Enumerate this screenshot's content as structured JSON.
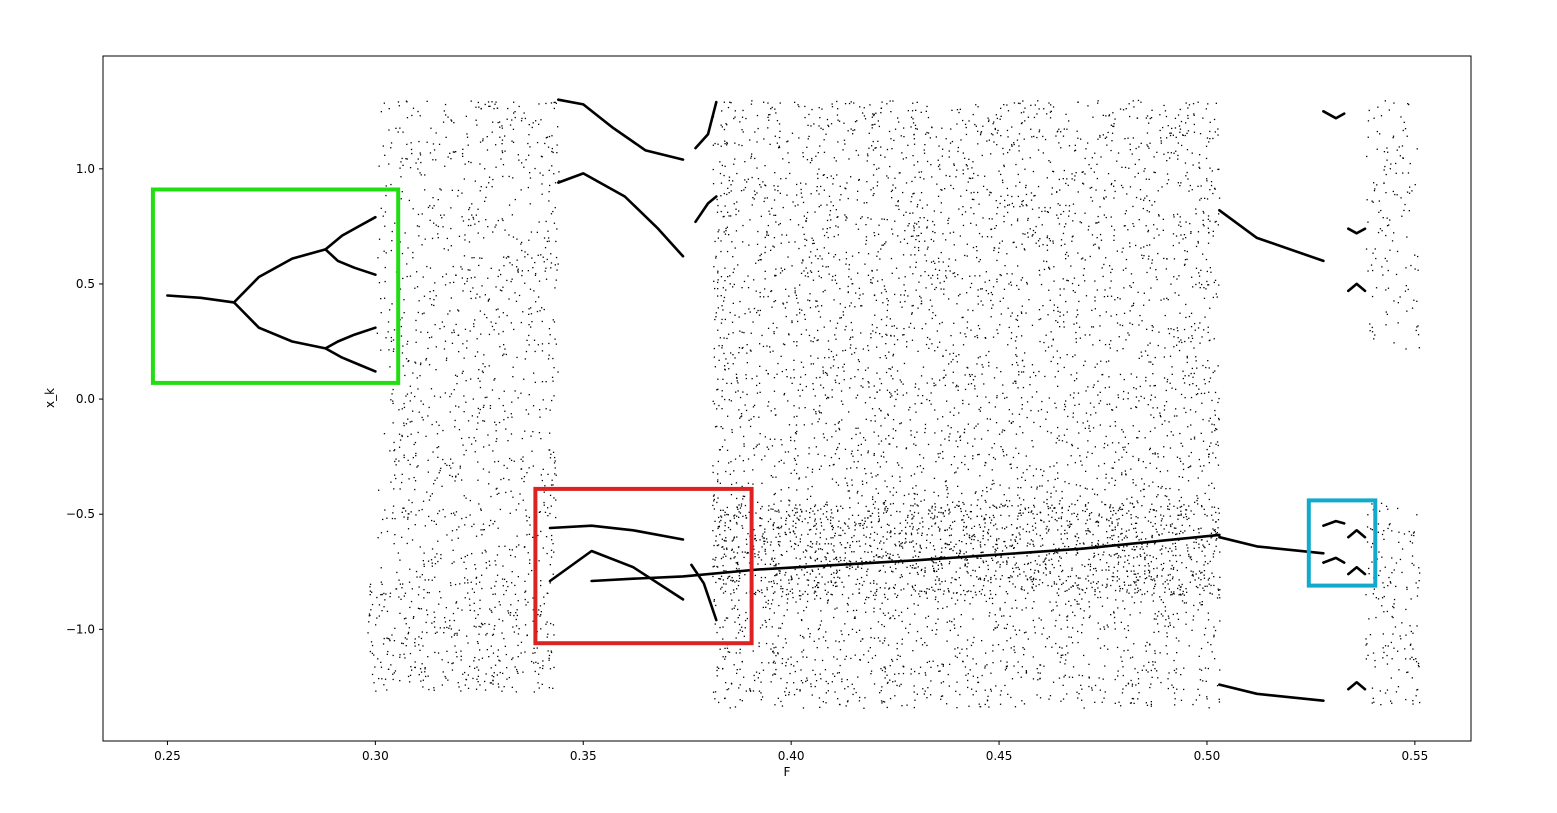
{
  "chart_data": {
    "type": "scatter",
    "xlabel": "F",
    "ylabel": "x_k",
    "xlim": [
      0.2345,
      0.5635
    ],
    "ylim": [
      -1.485,
      1.49
    ],
    "grid": false,
    "marker_color": "#000000",
    "xticks": [
      {
        "value": 0.25,
        "label": "0.25"
      },
      {
        "value": 0.3,
        "label": "0.30"
      },
      {
        "value": 0.35,
        "label": "0.35"
      },
      {
        "value": 0.4,
        "label": "0.40"
      },
      {
        "value": 0.45,
        "label": "0.45"
      },
      {
        "value": 0.5,
        "label": "0.50"
      },
      {
        "value": 0.55,
        "label": "0.55"
      }
    ],
    "yticks": [
      {
        "value": 1.0,
        "label": "1.0"
      },
      {
        "value": 0.5,
        "label": "0.5"
      },
      {
        "value": 0.0,
        "label": "0.0"
      },
      {
        "value": -0.5,
        "label": "−0.5"
      },
      {
        "value": -1.0,
        "label": "−1.0"
      }
    ],
    "series": [
      {
        "description": "bifurcation branches",
        "curves": [
          [
            [
              0.25,
              0.45
            ],
            [
              0.258,
              0.44
            ],
            [
              0.266,
              0.42
            ]
          ],
          [
            [
              0.266,
              0.42
            ],
            [
              0.272,
              0.53
            ],
            [
              0.28,
              0.61
            ],
            [
              0.288,
              0.65
            ]
          ],
          [
            [
              0.266,
              0.42
            ],
            [
              0.272,
              0.31
            ],
            [
              0.28,
              0.25
            ],
            [
              0.288,
              0.22
            ]
          ],
          [
            [
              0.288,
              0.65
            ],
            [
              0.292,
              0.71
            ],
            [
              0.296,
              0.75
            ],
            [
              0.3,
              0.79
            ]
          ],
          [
            [
              0.288,
              0.65
            ],
            [
              0.291,
              0.6
            ],
            [
              0.295,
              0.57
            ],
            [
              0.3,
              0.54
            ]
          ],
          [
            [
              0.288,
              0.22
            ],
            [
              0.291,
              0.25
            ],
            [
              0.295,
              0.28
            ],
            [
              0.3,
              0.31
            ]
          ],
          [
            [
              0.288,
              0.22
            ],
            [
              0.292,
              0.18
            ],
            [
              0.296,
              0.15
            ],
            [
              0.3,
              0.12
            ]
          ],
          [
            [
              0.344,
              1.3
            ],
            [
              0.35,
              1.28
            ],
            [
              0.357,
              1.18
            ],
            [
              0.365,
              1.08
            ],
            [
              0.374,
              1.04
            ]
          ],
          [
            [
              0.344,
              0.94
            ],
            [
              0.35,
              0.98
            ],
            [
              0.36,
              0.88
            ],
            [
              0.368,
              0.74
            ],
            [
              0.374,
              0.62
            ]
          ],
          [
            [
              0.377,
              1.09
            ],
            [
              0.38,
              1.15
            ],
            [
              0.382,
              1.29
            ]
          ],
          [
            [
              0.377,
              0.77
            ],
            [
              0.38,
              0.85
            ],
            [
              0.382,
              0.88
            ]
          ],
          [
            [
              0.342,
              -0.56
            ],
            [
              0.352,
              -0.55
            ],
            [
              0.362,
              -0.57
            ],
            [
              0.374,
              -0.61
            ]
          ],
          [
            [
              0.342,
              -0.79
            ],
            [
              0.352,
              -0.66
            ],
            [
              0.362,
              -0.73
            ],
            [
              0.374,
              -0.87
            ]
          ],
          [
            [
              0.352,
              -0.79
            ],
            [
              0.362,
              -0.78
            ],
            [
              0.374,
              -0.77
            ],
            [
              0.392,
              -0.74
            ],
            [
              0.43,
              -0.7
            ],
            [
              0.47,
              -0.65
            ],
            [
              0.503,
              -0.59
            ]
          ],
          [
            [
              0.376,
              -0.72
            ],
            [
              0.379,
              -0.8
            ],
            [
              0.382,
              -0.96
            ]
          ],
          [
            [
              0.503,
              0.82
            ],
            [
              0.512,
              0.7
            ],
            [
              0.528,
              0.6
            ]
          ],
          [
            [
              0.503,
              -0.6
            ],
            [
              0.512,
              -0.64
            ],
            [
              0.528,
              -0.67
            ]
          ],
          [
            [
              0.503,
              -1.24
            ],
            [
              0.512,
              -1.28
            ],
            [
              0.528,
              -1.31
            ]
          ],
          [
            [
              0.528,
              1.25
            ],
            [
              0.531,
              1.22
            ],
            [
              0.533,
              1.24
            ]
          ],
          [
            [
              0.534,
              0.47
            ],
            [
              0.536,
              0.5
            ],
            [
              0.538,
              0.47
            ]
          ],
          [
            [
              0.534,
              0.74
            ],
            [
              0.536,
              0.72
            ],
            [
              0.538,
              0.74
            ]
          ],
          [
            [
              0.534,
              -0.6
            ],
            [
              0.536,
              -0.57
            ],
            [
              0.538,
              -0.6
            ]
          ],
          [
            [
              0.534,
              -0.76
            ],
            [
              0.536,
              -0.73
            ],
            [
              0.538,
              -0.76
            ]
          ],
          [
            [
              0.534,
              -1.26
            ],
            [
              0.536,
              -1.23
            ],
            [
              0.538,
              -1.26
            ]
          ],
          [
            [
              0.528,
              -0.55
            ],
            [
              0.531,
              -0.53
            ],
            [
              0.533,
              -0.54
            ]
          ],
          [
            [
              0.528,
              -0.71
            ],
            [
              0.531,
              -0.69
            ],
            [
              0.533,
              -0.71
            ]
          ]
        ]
      },
      {
        "description": "chaotic regions",
        "bands": [
          {
            "x": [
              0.3,
              0.303
            ],
            "y": [
              -0.85,
              1.3
            ],
            "density": 0.4
          },
          {
            "x": [
              0.298,
              0.343
            ],
            "y": [
              -1.27,
              -0.78
            ],
            "density": 1.4
          },
          {
            "x": [
              0.303,
              0.344
            ],
            "y": [
              -0.78,
              1.3
            ],
            "density": 0.9
          },
          {
            "x": [
              0.381,
              0.503
            ],
            "y": [
              -1.34,
              1.3
            ],
            "density": 1.1
          },
          {
            "x": [
              0.381,
              0.503
            ],
            "y": [
              -0.85,
              -0.45
            ],
            "density": 1.8
          },
          {
            "x": [
              0.538,
              0.551
            ],
            "y": [
              0.22,
              1.3
            ],
            "density": 0.7
          },
          {
            "x": [
              0.538,
              0.551
            ],
            "y": [
              -1.34,
              -0.45
            ],
            "density": 1.0
          }
        ]
      }
    ],
    "annotations": [
      {
        "shape": "rectangle",
        "color": "#22dd11",
        "x": [
          0.2465,
          0.3055
        ],
        "y": [
          0.07,
          0.91
        ]
      },
      {
        "shape": "rectangle",
        "color": "#dd2222",
        "x": [
          0.3385,
          0.3905
        ],
        "y": [
          -1.06,
          -0.39
        ]
      },
      {
        "shape": "rectangle",
        "color": "#11aacc",
        "x": [
          0.5245,
          0.5405
        ],
        "y": [
          -0.81,
          -0.44
        ]
      }
    ]
  }
}
